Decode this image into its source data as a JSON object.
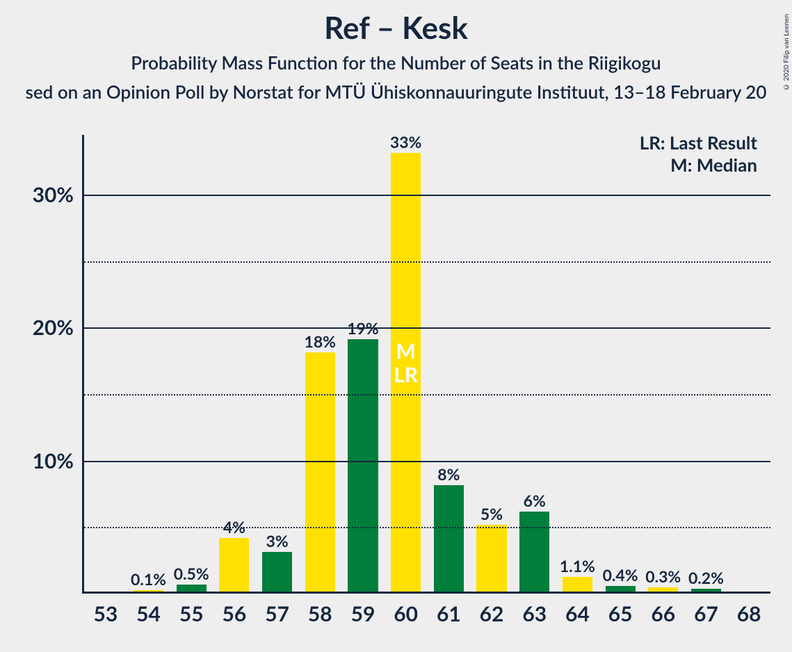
{
  "chart": {
    "type": "bar",
    "title": "Ref – Kesk",
    "subtitle": "Probability Mass Function for the Number of Seats in the Riigikogu",
    "caption": "sed on an Opinion Poll by Norstat for MTÜ Ühiskonnauuringute Instituut, 13–18 February 20",
    "title_fontsize": 44,
    "subtitle_fontsize": 26,
    "caption_fontsize": 26,
    "title_color": "#15273f",
    "background_color": "#efeeee",
    "copyright": "© 2020 Filip van Leenen",
    "legend": {
      "lr": "LR: Last Result",
      "m": "M: Median",
      "fontsize": 26
    },
    "colors": {
      "yellow": "#ffe000",
      "green": "#007e3b",
      "axis": "#15273f"
    },
    "y_axis": {
      "min": 0,
      "max": 34.5,
      "major_ticks": [
        10,
        20,
        30
      ],
      "major_labels": [
        "10%",
        "20%",
        "30%"
      ],
      "minor_ticks": [
        5,
        15,
        25
      ],
      "tick_fontsize": 30
    },
    "x_axis": {
      "tick_fontsize": 30
    },
    "bars": [
      {
        "x": "53",
        "value": 0,
        "label": "0%",
        "color": "green"
      },
      {
        "x": "54",
        "value": 0.1,
        "label": "0.1%",
        "color": "yellow"
      },
      {
        "x": "55",
        "value": 0.5,
        "label": "0.5%",
        "color": "green"
      },
      {
        "x": "56",
        "value": 4,
        "label": "4%",
        "color": "yellow"
      },
      {
        "x": "57",
        "value": 3,
        "label": "3%",
        "color": "green"
      },
      {
        "x": "58",
        "value": 18,
        "label": "18%",
        "color": "yellow"
      },
      {
        "x": "59",
        "value": 19,
        "label": "19%",
        "color": "green"
      },
      {
        "x": "60",
        "value": 33,
        "label": "33%",
        "color": "yellow",
        "annotation": {
          "lines": [
            "M",
            "LR"
          ],
          "fontsize": 30,
          "top_value": 19
        }
      },
      {
        "x": "61",
        "value": 8,
        "label": "8%",
        "color": "green"
      },
      {
        "x": "62",
        "value": 5,
        "label": "5%",
        "color": "yellow"
      },
      {
        "x": "63",
        "value": 6,
        "label": "6%",
        "color": "green"
      },
      {
        "x": "64",
        "value": 1.1,
        "label": "1.1%",
        "color": "yellow"
      },
      {
        "x": "65",
        "value": 0.4,
        "label": "0.4%",
        "color": "green"
      },
      {
        "x": "66",
        "value": 0.3,
        "label": "0.3%",
        "color": "yellow"
      },
      {
        "x": "67",
        "value": 0.2,
        "label": "0.2%",
        "color": "green"
      },
      {
        "x": "68",
        "value": 0,
        "label": "0%",
        "color": "yellow"
      }
    ],
    "bar_label_fontsize": 23
  }
}
